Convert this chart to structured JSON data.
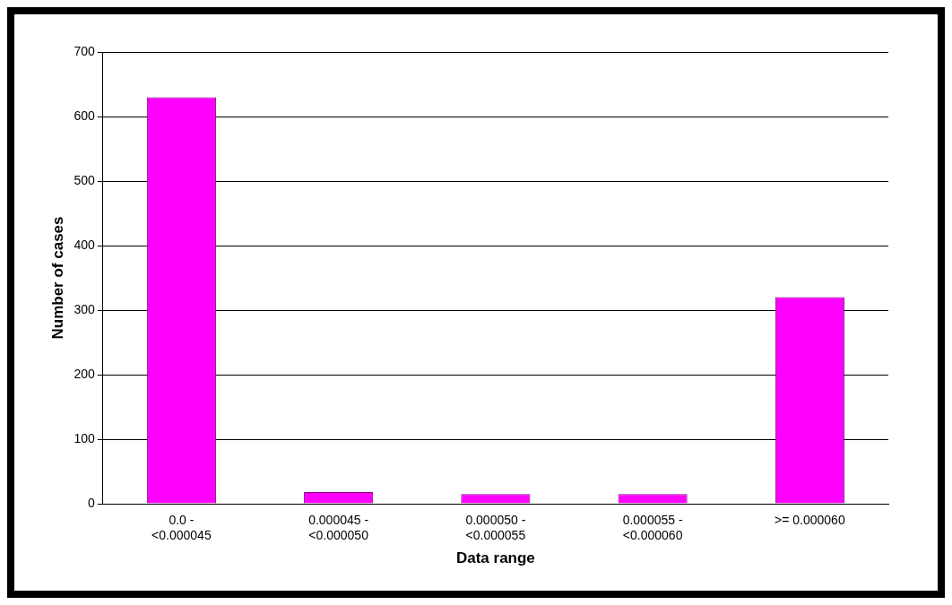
{
  "chart_data": {
    "type": "bar",
    "xlabel": "Data range",
    "ylabel": "Number of cases",
    "categories": [
      "0.0 - <0.000045",
      "0.000045 - <0.000050",
      "0.000050 - <0.000055",
      "0.000055 - <0.000060",
      ">= 0.000060"
    ],
    "values": [
      630,
      18,
      15,
      15,
      320
    ],
    "color": "#ff00ff",
    "ylim": [
      0,
      700
    ],
    "yticks": [
      0,
      100,
      200,
      300,
      400,
      500,
      600,
      700
    ],
    "grid": "y",
    "legend": false
  }
}
